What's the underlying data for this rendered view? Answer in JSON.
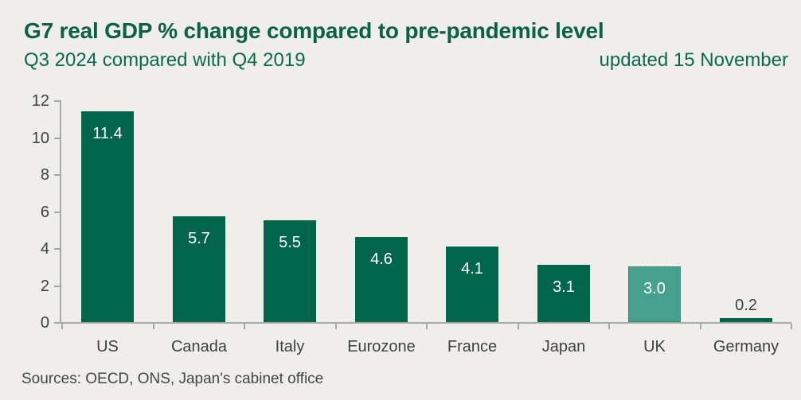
{
  "chart_data": {
    "type": "bar",
    "title": "G7 real GDP % change compared to pre-pandemic level",
    "subtitle": "Q3 2024 compared with Q4 2019",
    "annotation": "updated 15 November",
    "categories": [
      "US",
      "Canada",
      "Italy",
      "Eurozone",
      "France",
      "Japan",
      "UK",
      "Germany"
    ],
    "values": [
      11.4,
      5.7,
      5.5,
      4.6,
      4.1,
      3.1,
      3.0,
      0.2
    ],
    "value_labels": [
      "11.4",
      "5.7",
      "5.5",
      "4.6",
      "4.1",
      "3.1",
      "3.0",
      "0.2"
    ],
    "xlabel": "",
    "ylabel": "",
    "ylim": [
      0,
      12
    ],
    "yticks": [
      0,
      2,
      4,
      6,
      8,
      10,
      12
    ],
    "grid": false,
    "legend": false,
    "bar_color": "#00654A",
    "highlight": {
      "category": "UK",
      "color": "#45A18B",
      "border_style": "dotted"
    },
    "source": "Sources: OECD, ONS, Japan's cabinet office"
  },
  "colors": {
    "background": "#EFEEEB",
    "title_green": "#0A6148",
    "subtitle_green": "#0A6A50",
    "bar_green": "#00654A",
    "uk_teal": "#45A18B",
    "uk_border": "#1D7A61",
    "axis_gray": "#A8A8A8",
    "text_gray": "#3F3F3F",
    "value_label_white": "#FFFFFF"
  }
}
